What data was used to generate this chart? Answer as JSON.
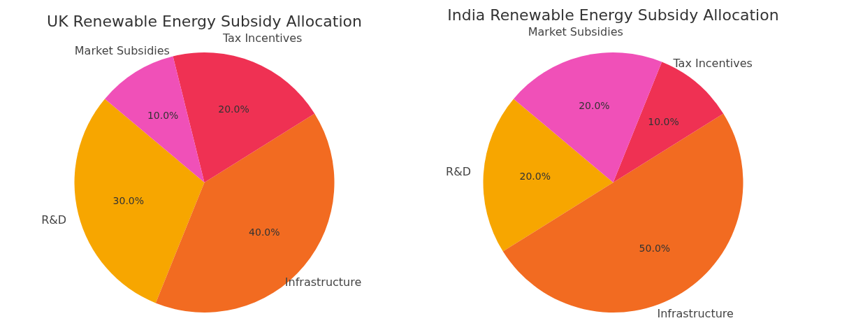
{
  "chart_data": [
    {
      "type": "pie",
      "title": "UK Renewable Energy Subsidy Allocation",
      "categories": [
        "R&D",
        "Infrastructure",
        "Tax Incentives",
        "Market Subsidies"
      ],
      "values": [
        30,
        40,
        20,
        10
      ],
      "colors": [
        "#f7a600",
        "#f26b21",
        "#ef3153",
        "#f050b8"
      ],
      "value_labels": [
        "30.0%",
        "40.0%",
        "20.0%",
        "10.0%"
      ]
    },
    {
      "type": "pie",
      "title": "India Renewable Energy Subsidy Allocation",
      "categories": [
        "R&D",
        "Infrastructure",
        "Tax Incentives",
        "Market Subsidies"
      ],
      "values": [
        20,
        50,
        10,
        20
      ],
      "colors": [
        "#f7a600",
        "#f26b21",
        "#ef3153",
        "#f050b8"
      ],
      "value_labels": [
        "20.0%",
        "50.0%",
        "10.0%",
        "20.0%"
      ]
    }
  ]
}
